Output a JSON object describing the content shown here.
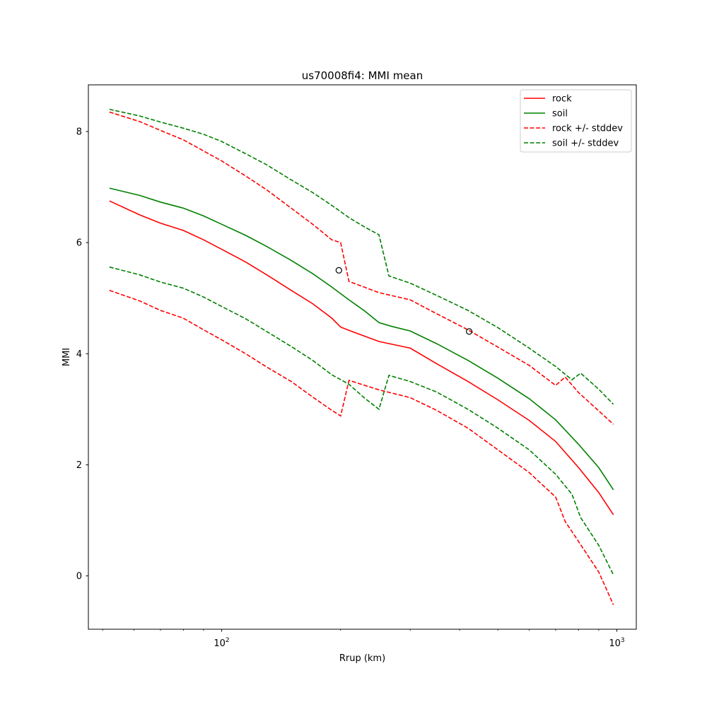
{
  "chart_data": {
    "type": "line",
    "title": "us70008fi4: MMI mean",
    "xlabel": "Rrup (km)",
    "ylabel": "MMI",
    "xscale": "log",
    "xlim": [
      46,
      1120
    ],
    "ylim": [
      -0.96,
      8.84
    ],
    "x_ticks": [
      {
        "value": 100,
        "base": "10",
        "exp": "2"
      },
      {
        "value": 1000,
        "base": "10",
        "exp": "3"
      }
    ],
    "y_ticks": [
      0,
      2,
      4,
      6,
      8
    ],
    "legend_position": "upper right",
    "grid": false,
    "series": [
      {
        "name": "rock",
        "color": "#ff0000",
        "dash": "solid",
        "points": [
          [
            52,
            6.75
          ],
          [
            62,
            6.5
          ],
          [
            70,
            6.35
          ],
          [
            80,
            6.22
          ],
          [
            90,
            6.05
          ],
          [
            100,
            5.88
          ],
          [
            115,
            5.65
          ],
          [
            130,
            5.42
          ],
          [
            150,
            5.14
          ],
          [
            170,
            4.9
          ],
          [
            190,
            4.64
          ],
          [
            200,
            4.48
          ],
          [
            210,
            4.42
          ],
          [
            250,
            4.22
          ],
          [
            300,
            4.1
          ],
          [
            350,
            3.82
          ],
          [
            420,
            3.5
          ],
          [
            500,
            3.17
          ],
          [
            600,
            2.8
          ],
          [
            700,
            2.42
          ],
          [
            800,
            1.95
          ],
          [
            900,
            1.5
          ],
          [
            980,
            1.1
          ]
        ]
      },
      {
        "name": "soil",
        "color": "#008000",
        "dash": "solid",
        "points": [
          [
            52,
            6.98
          ],
          [
            62,
            6.85
          ],
          [
            70,
            6.73
          ],
          [
            80,
            6.62
          ],
          [
            90,
            6.48
          ],
          [
            100,
            6.33
          ],
          [
            115,
            6.13
          ],
          [
            130,
            5.93
          ],
          [
            150,
            5.68
          ],
          [
            170,
            5.44
          ],
          [
            190,
            5.2
          ],
          [
            210,
            4.97
          ],
          [
            230,
            4.77
          ],
          [
            250,
            4.56
          ],
          [
            270,
            4.49
          ],
          [
            300,
            4.41
          ],
          [
            350,
            4.18
          ],
          [
            420,
            3.88
          ],
          [
            500,
            3.56
          ],
          [
            600,
            3.19
          ],
          [
            700,
            2.81
          ],
          [
            800,
            2.37
          ],
          [
            900,
            1.95
          ],
          [
            980,
            1.55
          ]
        ]
      },
      {
        "name": "rock +/- stddev",
        "color": "#ff0000",
        "dash": "dashed",
        "points": [
          [
            52,
            8.35
          ],
          [
            62,
            8.18
          ],
          [
            70,
            8.02
          ],
          [
            80,
            7.85
          ],
          [
            90,
            7.65
          ],
          [
            100,
            7.47
          ],
          [
            115,
            7.2
          ],
          [
            130,
            6.95
          ],
          [
            150,
            6.62
          ],
          [
            170,
            6.33
          ],
          [
            190,
            6.05
          ],
          [
            200,
            6.0
          ],
          [
            210,
            5.3
          ],
          [
            250,
            5.1
          ],
          [
            300,
            4.97
          ],
          [
            350,
            4.72
          ],
          [
            420,
            4.43
          ],
          [
            500,
            4.12
          ],
          [
            600,
            3.79
          ],
          [
            700,
            3.43
          ],
          [
            740,
            3.58
          ],
          [
            800,
            3.3
          ],
          [
            900,
            2.97
          ],
          [
            980,
            2.73
          ]
        ]
      },
      {
        "name": "soil +/- stddev",
        "color": "#008000",
        "dash": "dashed",
        "points": [
          [
            52,
            8.4
          ],
          [
            62,
            8.28
          ],
          [
            70,
            8.17
          ],
          [
            80,
            8.06
          ],
          [
            90,
            7.95
          ],
          [
            100,
            7.82
          ],
          [
            115,
            7.6
          ],
          [
            130,
            7.4
          ],
          [
            150,
            7.13
          ],
          [
            170,
            6.9
          ],
          [
            190,
            6.67
          ],
          [
            210,
            6.45
          ],
          [
            230,
            6.28
          ],
          [
            250,
            6.14
          ],
          [
            265,
            5.4
          ],
          [
            300,
            5.27
          ],
          [
            350,
            5.05
          ],
          [
            420,
            4.78
          ],
          [
            500,
            4.47
          ],
          [
            600,
            4.1
          ],
          [
            700,
            3.77
          ],
          [
            770,
            3.53
          ],
          [
            810,
            3.65
          ],
          [
            900,
            3.36
          ],
          [
            980,
            3.09
          ]
        ]
      },
      {
        "name": "",
        "color": "#ff0000",
        "dash": "dashed",
        "points": [
          [
            52,
            5.14
          ],
          [
            62,
            4.95
          ],
          [
            70,
            4.78
          ],
          [
            80,
            4.64
          ],
          [
            90,
            4.43
          ],
          [
            100,
            4.25
          ],
          [
            115,
            4.0
          ],
          [
            130,
            3.76
          ],
          [
            150,
            3.5
          ],
          [
            170,
            3.22
          ],
          [
            190,
            2.98
          ],
          [
            200,
            2.88
          ],
          [
            210,
            3.52
          ],
          [
            250,
            3.35
          ],
          [
            300,
            3.21
          ],
          [
            350,
            2.98
          ],
          [
            420,
            2.66
          ],
          [
            500,
            2.27
          ],
          [
            600,
            1.86
          ],
          [
            700,
            1.42
          ],
          [
            740,
            0.98
          ],
          [
            800,
            0.62
          ],
          [
            900,
            0.07
          ],
          [
            980,
            -0.52
          ]
        ]
      },
      {
        "name": "",
        "color": "#008000",
        "dash": "dashed",
        "points": [
          [
            52,
            5.56
          ],
          [
            62,
            5.42
          ],
          [
            70,
            5.29
          ],
          [
            80,
            5.18
          ],
          [
            90,
            5.02
          ],
          [
            100,
            4.85
          ],
          [
            115,
            4.63
          ],
          [
            130,
            4.4
          ],
          [
            150,
            4.13
          ],
          [
            170,
            3.88
          ],
          [
            190,
            3.62
          ],
          [
            210,
            3.45
          ],
          [
            230,
            3.2
          ],
          [
            250,
            3.0
          ],
          [
            265,
            3.61
          ],
          [
            300,
            3.5
          ],
          [
            350,
            3.31
          ],
          [
            420,
            3.0
          ],
          [
            500,
            2.66
          ],
          [
            600,
            2.27
          ],
          [
            700,
            1.83
          ],
          [
            770,
            1.47
          ],
          [
            810,
            1.05
          ],
          [
            900,
            0.55
          ],
          [
            980,
            0.02
          ]
        ]
      }
    ],
    "observations": {
      "marker": "open-circle",
      "color": "#000000",
      "points": [
        [
          198,
          5.5
        ],
        [
          423,
          4.4
        ]
      ]
    }
  }
}
